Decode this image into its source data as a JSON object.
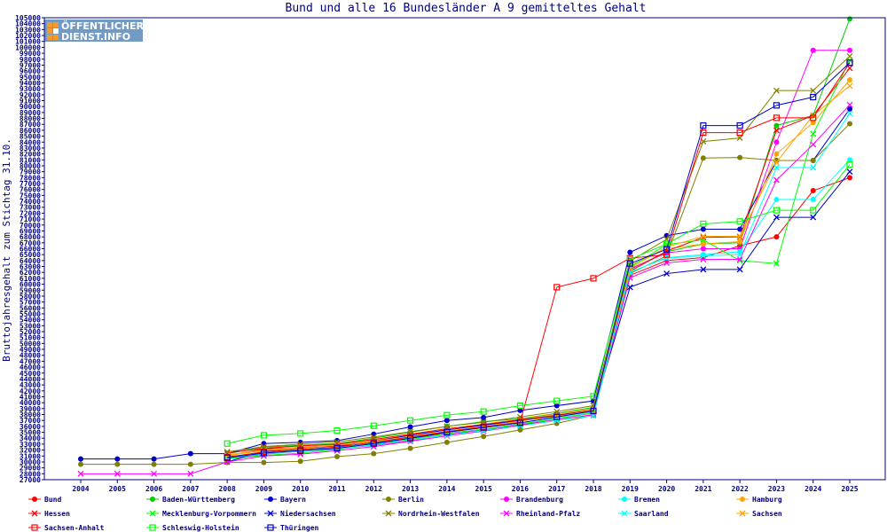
{
  "watermark": {
    "line1": "ÖFFENTLICHER",
    "line2": "DIENST.INFO"
  },
  "chart_data": {
    "type": "line",
    "title": "Bund und alle 16 Bundesländer A 9 gemitteltes Gehalt",
    "xlabel": "",
    "ylabel": "Bruttojahresgehalt zum Stichtag 31.10.",
    "x": [
      2004,
      2005,
      2006,
      2007,
      2008,
      2009,
      2010,
      2011,
      2012,
      2013,
      2014,
      2015,
      2016,
      2017,
      2018,
      2019,
      2020,
      2021,
      2022,
      2023,
      2024,
      2025
    ],
    "ylim": [
      27000,
      105000
    ],
    "ytick_step": 1000,
    "grid": false,
    "legend_position": "bottom",
    "series": [
      {
        "name": "Bund",
        "color": "#ff0000",
        "marker": "dot",
        "values": [
          null,
          null,
          null,
          null,
          31000,
          32200,
          32400,
          32700,
          33000,
          34000,
          34800,
          35500,
          36200,
          37000,
          38000,
          61500,
          64000,
          64500,
          66500,
          68000,
          75800,
          78000
        ]
      },
      {
        "name": "Baden-Württemberg",
        "color": "#00cc00",
        "marker": "dot",
        "values": [
          null,
          null,
          null,
          null,
          31400,
          32500,
          32800,
          33100,
          34000,
          35000,
          36000,
          36800,
          37300,
          38200,
          39200,
          62500,
          65500,
          66800,
          67000,
          86800,
          88500,
          104800
        ]
      },
      {
        "name": "Bayern",
        "color": "#0000cc",
        "marker": "dot",
        "values": [
          30500,
          30500,
          30500,
          31400,
          31400,
          33100,
          33300,
          33600,
          34700,
          35900,
          37000,
          37500,
          38700,
          39500,
          40300,
          65400,
          68200,
          69300,
          69300,
          80900,
          80900,
          89600
        ]
      },
      {
        "name": "Berlin",
        "color": "#808000",
        "marker": "dot",
        "values": [
          29600,
          29600,
          29600,
          29600,
          29900,
          29900,
          30100,
          30900,
          31400,
          32300,
          33300,
          34300,
          35400,
          36500,
          37900,
          61800,
          64800,
          81300,
          81400,
          80900,
          80900,
          87100
        ]
      },
      {
        "name": "Brandenburg",
        "color": "#ff00ff",
        "marker": "dot",
        "values": [
          null,
          null,
          null,
          null,
          30500,
          31300,
          31800,
          32200,
          32800,
          33600,
          34600,
          35400,
          36300,
          37200,
          38300,
          62600,
          65300,
          66000,
          66000,
          84000,
          99500,
          99500
        ]
      },
      {
        "name": "Bremen",
        "color": "#00ffff",
        "marker": "dot",
        "values": [
          null,
          null,
          null,
          null,
          30900,
          31600,
          32000,
          32400,
          33200,
          34100,
          35000,
          35800,
          36600,
          37500,
          38500,
          62000,
          64500,
          65000,
          65500,
          74300,
          74300,
          81000
        ]
      },
      {
        "name": "Hamburg",
        "color": "#ffa500",
        "marker": "dot",
        "values": [
          null,
          null,
          null,
          null,
          31200,
          32000,
          32500,
          32900,
          33600,
          34600,
          35600,
          36400,
          37200,
          38100,
          39000,
          63200,
          66000,
          66800,
          67200,
          82000,
          87300,
          94500
        ]
      },
      {
        "name": "Hessen",
        "color": "#ff0000",
        "marker": "x",
        "values": [
          null,
          null,
          null,
          null,
          31500,
          32300,
          32700,
          33000,
          33800,
          34700,
          35600,
          36300,
          37100,
          37900,
          38800,
          62200,
          65600,
          67900,
          68000,
          86000,
          88500,
          96500
        ]
      },
      {
        "name": "Mecklenburg-Vorpommern",
        "color": "#00ff00",
        "marker": "x",
        "values": [
          null,
          null,
          null,
          null,
          30500,
          31100,
          31500,
          32100,
          32900,
          33800,
          34800,
          35500,
          36400,
          37300,
          38300,
          62900,
          66700,
          67500,
          64000,
          63500,
          85400,
          97800
        ]
      },
      {
        "name": "Niedersachsen",
        "color": "#0000cc",
        "marker": "x",
        "values": [
          null,
          null,
          null,
          null,
          30000,
          31800,
          32300,
          32700,
          33500,
          34500,
          35400,
          36200,
          37000,
          37800,
          38700,
          59500,
          61800,
          62500,
          62500,
          71300,
          71300,
          79000
        ]
      },
      {
        "name": "Nordrhein-Westfalen",
        "color": "#808000",
        "marker": "x",
        "values": [
          null,
          null,
          null,
          null,
          31700,
          32600,
          33000,
          33400,
          34200,
          35100,
          36000,
          36700,
          37600,
          38500,
          39500,
          63900,
          67600,
          84100,
          84700,
          92700,
          92700,
          98500
        ]
      },
      {
        "name": "Rheinland-Pfalz",
        "color": "#ff00ff",
        "marker": "x",
        "values": [
          28000,
          28000,
          28000,
          28000,
          30000,
          31000,
          31300,
          31900,
          32600,
          33500,
          34400,
          35200,
          36100,
          37000,
          38000,
          61100,
          63600,
          64200,
          64200,
          77600,
          83600,
          90300
        ]
      },
      {
        "name": "Saarland",
        "color": "#00ffff",
        "marker": "x",
        "values": [
          null,
          null,
          null,
          null,
          30600,
          31400,
          31800,
          32200,
          32900,
          33700,
          34500,
          35300,
          36100,
          37000,
          37800,
          62100,
          64400,
          64800,
          65000,
          79700,
          79700,
          88800
        ]
      },
      {
        "name": "Sachsen",
        "color": "#ffa500",
        "marker": "x",
        "values": [
          null,
          null,
          null,
          null,
          31100,
          31900,
          32300,
          32800,
          33500,
          34300,
          35200,
          36000,
          36900,
          37700,
          38700,
          62700,
          66300,
          68100,
          68100,
          80600,
          88500,
          93500
        ]
      },
      {
        "name": "Sachsen-Anhalt",
        "color": "#ff0000",
        "marker": "square",
        "values": [
          null,
          null,
          null,
          null,
          30800,
          31700,
          32100,
          32500,
          33300,
          34200,
          35100,
          35900,
          36700,
          59500,
          61000,
          64400,
          65000,
          85600,
          85600,
          88100,
          88100,
          97400
        ]
      },
      {
        "name": "Schleswig-Holstein",
        "color": "#00ff00",
        "marker": "square",
        "values": [
          null,
          null,
          null,
          null,
          33100,
          34500,
          34800,
          35300,
          36100,
          37000,
          37900,
          38500,
          39500,
          40300,
          41100,
          64200,
          66800,
          70200,
          70600,
          72500,
          72500,
          80200
        ]
      },
      {
        "name": "Thüringen",
        "color": "#0000cc",
        "marker": "square",
        "values": [
          null,
          null,
          null,
          null,
          30700,
          31500,
          31900,
          32300,
          33100,
          34000,
          35000,
          35800,
          36600,
          37600,
          38600,
          63500,
          65900,
          86800,
          86800,
          90200,
          91600,
          97400
        ]
      }
    ]
  }
}
